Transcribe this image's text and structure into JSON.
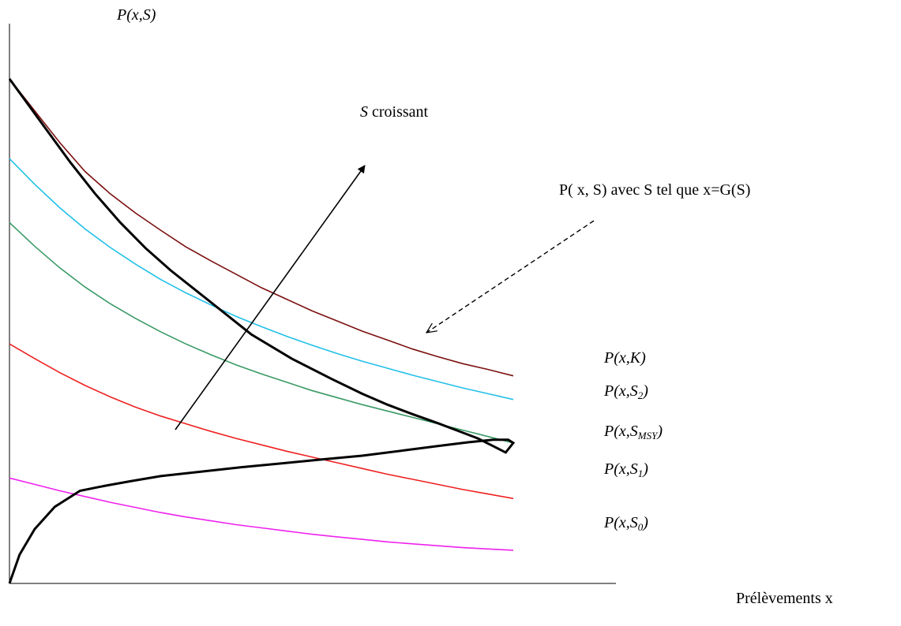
{
  "chart_data": {
    "type": "line",
    "ylabel": "P(x,S)",
    "xlabel": "Prélèvements x",
    "axes": {
      "x_ticks": false,
      "y_ticks": false,
      "grid": false
    },
    "annotations": {
      "arrow_label": {
        "var": "S",
        "text": " croissant"
      },
      "envelope_label": "P( x, S) avec S tel que x=G(S)"
    },
    "series": [
      {
        "name": "P(x,K)",
        "base": "P(x,K",
        "sub": "",
        "tail": ")",
        "color": "#7b1010",
        "x": [
          0,
          0.05,
          0.1,
          0.15,
          0.2,
          0.25,
          0.3,
          0.35,
          0.4,
          0.45,
          0.5,
          0.55,
          0.6,
          0.65,
          0.7,
          0.75,
          0.8,
          0.85,
          0.9,
          0.95,
          1.0
        ],
        "y": [
          0.79,
          0.74,
          0.69,
          0.645,
          0.61,
          0.58,
          0.553,
          0.527,
          0.505,
          0.484,
          0.463,
          0.445,
          0.427,
          0.411,
          0.395,
          0.381,
          0.367,
          0.355,
          0.344,
          0.335,
          0.325
        ]
      },
      {
        "name": "P(x,S2)",
        "base": "P(x,S",
        "sub": "2",
        "tail": ")",
        "color": "#22c0e8",
        "x": [
          0,
          0.05,
          0.1,
          0.15,
          0.2,
          0.25,
          0.3,
          0.35,
          0.4,
          0.45,
          0.5,
          0.55,
          0.6,
          0.65,
          0.7,
          0.75,
          0.8,
          0.85,
          0.9,
          0.95,
          1.0
        ],
        "y": [
          0.665,
          0.625,
          0.588,
          0.555,
          0.526,
          0.5,
          0.476,
          0.455,
          0.436,
          0.418,
          0.402,
          0.387,
          0.373,
          0.36,
          0.348,
          0.337,
          0.326,
          0.316,
          0.306,
          0.297,
          0.288
        ]
      },
      {
        "name": "P(x,SMSY)",
        "base": "P(x,S",
        "sub": "MSY",
        "tail": ")",
        "color": "#3a9a66",
        "x": [
          0,
          0.05,
          0.1,
          0.15,
          0.2,
          0.25,
          0.3,
          0.35,
          0.4,
          0.45,
          0.5,
          0.55,
          0.6,
          0.65,
          0.7,
          0.75,
          0.8,
          0.85,
          0.9,
          0.95,
          1.0
        ],
        "y": [
          0.565,
          0.528,
          0.494,
          0.464,
          0.438,
          0.415,
          0.394,
          0.375,
          0.358,
          0.342,
          0.328,
          0.315,
          0.302,
          0.291,
          0.28,
          0.27,
          0.26,
          0.25,
          0.24,
          0.23,
          0.22
        ]
      },
      {
        "name": "P(x,S1)",
        "base": "P(x,S",
        "sub": "1",
        "tail": ")",
        "color": "#ee2020",
        "x": [
          0,
          0.05,
          0.1,
          0.15,
          0.2,
          0.25,
          0.3,
          0.35,
          0.4,
          0.45,
          0.5,
          0.55,
          0.6,
          0.65,
          0.7,
          0.75,
          0.8,
          0.85,
          0.9,
          0.95,
          1.0
        ],
        "y": [
          0.375,
          0.352,
          0.33,
          0.31,
          0.292,
          0.276,
          0.262,
          0.25,
          0.238,
          0.227,
          0.217,
          0.207,
          0.198,
          0.189,
          0.18,
          0.171,
          0.163,
          0.155,
          0.147,
          0.14,
          0.133
        ]
      },
      {
        "name": "P(x,S0)",
        "base": "P(x,S",
        "sub": "0",
        "tail": ")",
        "color": "#ee22ee",
        "x": [
          0,
          0.05,
          0.1,
          0.15,
          0.2,
          0.25,
          0.3,
          0.35,
          0.4,
          0.45,
          0.5,
          0.55,
          0.6,
          0.65,
          0.7,
          0.75,
          0.8,
          0.85,
          0.9,
          0.95,
          1.0
        ],
        "y": [
          0.165,
          0.155,
          0.145,
          0.136,
          0.127,
          0.119,
          0.111,
          0.104,
          0.098,
          0.092,
          0.087,
          0.082,
          0.077,
          0.073,
          0.069,
          0.065,
          0.062,
          0.059,
          0.056,
          0.054,
          0.052
        ]
      }
    ],
    "envelope": {
      "color": "#000000",
      "x": [
        0,
        0.06,
        0.12,
        0.17,
        0.22,
        0.27,
        0.32,
        0.4,
        0.48,
        0.56,
        0.64,
        0.7,
        0.75,
        0.8,
        0.85,
        0.89,
        0.93,
        0.96,
        0.985,
        1.0,
        0.99,
        0.96,
        0.91,
        0.85,
        0.78,
        0.7,
        0.62,
        0.54,
        0.46,
        0.38,
        0.3,
        0.24,
        0.19,
        0.14,
        0.09,
        0.05,
        0.02,
        0.0
      ],
      "y": [
        0.79,
        0.725,
        0.66,
        0.61,
        0.565,
        0.525,
        0.49,
        0.44,
        0.39,
        0.352,
        0.32,
        0.297,
        0.28,
        0.265,
        0.251,
        0.239,
        0.227,
        0.215,
        0.205,
        0.22,
        0.225,
        0.225,
        0.221,
        0.215,
        0.208,
        0.2,
        0.194,
        0.188,
        0.182,
        0.175,
        0.168,
        0.16,
        0.153,
        0.145,
        0.12,
        0.085,
        0.045,
        0.0
      ]
    }
  }
}
